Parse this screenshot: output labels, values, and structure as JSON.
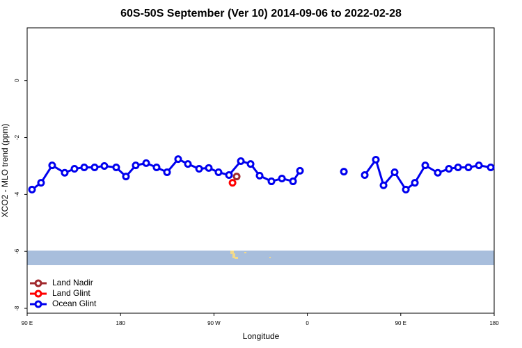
{
  "chart_data": {
    "type": "line",
    "title": "60S-50S September (Ver 10)   2014-09-06 to 2022-02-28",
    "x_label": "Longitude",
    "y_label": "XCO2 - MLO trend (ppm)",
    "xlim": [
      90,
      540
    ],
    "ylim": [
      -8.17,
      1.85
    ],
    "xticks": [
      {
        "value": 90,
        "label": "90 E"
      },
      180,
      {
        "value": 270,
        "label": "90 W"
      },
      {
        "value": 360,
        "label": "0"
      },
      {
        "value": 450,
        "label": "90 E"
      },
      {
        "value": 540,
        "label": "180"
      }
    ],
    "yticks": [
      0,
      -2,
      -4,
      -6,
      -8
    ],
    "legend": "lower left",
    "series": [
      {
        "name": "Land Nadir",
        "color": "#a0282d",
        "x": [
          291.9
        ],
        "values": [
          -3.37
        ]
      },
      {
        "name": "Land Glint",
        "color": "#ff0000",
        "x": [
          287.9
        ],
        "values": [
          -3.59
        ]
      },
      {
        "name": "Ocean Glint",
        "color": "#0000ee",
        "x": [
          94.7,
          103.4,
          114.1,
          126.2,
          135.6,
          145,
          155,
          164.4,
          175.8,
          185.2,
          194.6,
          204.7,
          214.7,
          224.8,
          235.5,
          244.9,
          255.7,
          265,
          274.4,
          284.5,
          295.9,
          305.3,
          314,
          325.4,
          335.5,
          346.2,
          352.9,
          null,
          395.2,
          null,
          415.3,
          426,
          433.4,
          444.1,
          454.9,
          463.6,
          473.6,
          485.7,
          496.4,
          505.2,
          515.2,
          525.3,
          536.7
        ],
        "values": [
          -3.83,
          -3.59,
          -2.98,
          -3.24,
          -3.1,
          -3.05,
          -3.05,
          -3.0,
          -3.05,
          -3.37,
          -2.98,
          -2.9,
          -3.05,
          -3.22,
          -2.76,
          -2.93,
          -3.1,
          -3.07,
          -3.22,
          -3.32,
          -2.83,
          -2.93,
          -3.34,
          -3.54,
          -3.44,
          -3.54,
          -3.17,
          null,
          -3.2,
          null,
          -3.32,
          -2.78,
          -3.68,
          -3.22,
          -3.83,
          -3.59,
          -2.98,
          -3.24,
          -3.1,
          -3.05,
          -3.05,
          -2.98,
          -3.05
        ]
      }
    ]
  }
}
